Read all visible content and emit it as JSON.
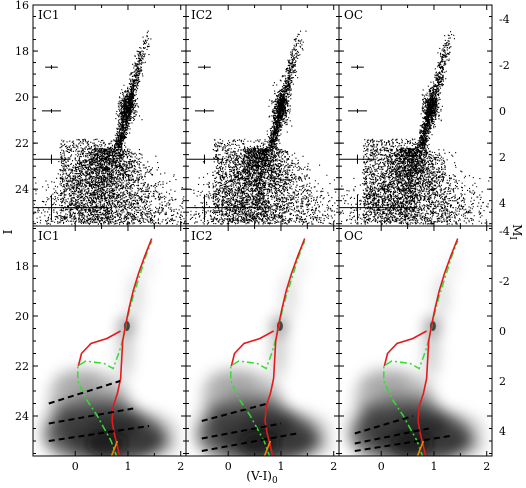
{
  "chart_data": {
    "type": "scatter",
    "description_type": "color-magnitude diagram grid",
    "x_axis": {
      "label": "(V-I)",
      "label_subscript": "0",
      "range": [
        -0.8,
        2.1
      ],
      "ticks": [
        0,
        1,
        2
      ],
      "tick_labels": [
        "0",
        "1",
        "2"
      ]
    },
    "left_axis": {
      "label": "I",
      "range_top": 16,
      "range_bottom": 25.6,
      "inverted": true,
      "top_ticks": [
        16,
        18,
        20,
        22,
        24
      ],
      "top_tick_labels": [
        "16",
        "18",
        "20",
        "22",
        "24"
      ],
      "bottom_ticks": [
        18,
        20,
        22,
        24
      ],
      "bottom_tick_labels": [
        "18",
        "20",
        "22",
        "24"
      ]
    },
    "right_axis": {
      "label": "M",
      "label_subscript": "I",
      "range_top": -4.6,
      "range_bottom": 5.0,
      "inverted": true,
      "ticks": [
        -4,
        -2,
        0,
        2,
        4
      ],
      "tick_labels": [
        "-4",
        "-2",
        "0",
        "2",
        "4"
      ]
    },
    "panels": [
      {
        "row": "top",
        "label": "IC1",
        "style": "points"
      },
      {
        "row": "top",
        "label": "IC2",
        "style": "points"
      },
      {
        "row": "top",
        "label": "OC",
        "style": "points"
      },
      {
        "row": "bottom",
        "label": "IC1",
        "style": "density"
      },
      {
        "row": "bottom",
        "label": "IC2",
        "style": "density"
      },
      {
        "row": "bottom",
        "label": "OC",
        "style": "density"
      }
    ],
    "error_bars": [
      {
        "I": 18.7,
        "dcolor": 0.02,
        "dmag": 0.01
      },
      {
        "I": 20.6,
        "dcolor": 0.03,
        "dmag": 0.02
      },
      {
        "I": 22.7,
        "dcolor": 0.06,
        "dmag": 0.05
      },
      {
        "I": 24.8,
        "dcolor": 0.18,
        "dmag": 0.14
      }
    ],
    "curves": {
      "red_isochrone": [
        [
          0.85,
          25.7
        ],
        [
          0.8,
          25.2
        ],
        [
          0.74,
          24.7
        ],
        [
          0.7,
          24.2
        ],
        [
          0.72,
          23.6
        ],
        [
          0.8,
          23.1
        ],
        [
          0.86,
          22.5
        ],
        [
          0.88,
          21.8
        ],
        [
          0.9,
          21.0
        ],
        [
          0.96,
          20.3
        ],
        [
          1.02,
          19.7
        ],
        [
          1.1,
          19.0
        ],
        [
          1.2,
          18.3
        ],
        [
          1.32,
          17.6
        ],
        [
          1.45,
          16.9
        ]
      ],
      "red_hook": [
        [
          0.86,
          20.6
        ],
        [
          0.6,
          20.9
        ],
        [
          0.3,
          21.1
        ],
        [
          0.12,
          21.5
        ],
        [
          0.06,
          22.0
        ]
      ],
      "green_isochrone": [
        [
          0.8,
          25.7
        ],
        [
          0.68,
          25.0
        ],
        [
          0.55,
          24.5
        ],
        [
          0.42,
          24.0
        ],
        [
          0.2,
          23.3
        ],
        [
          0.05,
          22.6
        ],
        [
          0.05,
          22.0
        ],
        [
          0.2,
          21.8
        ],
        [
          0.55,
          21.9
        ],
        [
          0.72,
          22.1
        ],
        [
          0.84,
          21.4
        ],
        [
          0.92,
          20.8
        ],
        [
          1.0,
          20.0
        ],
        [
          1.1,
          19.2
        ],
        [
          1.22,
          18.4
        ],
        [
          1.34,
          17.6
        ],
        [
          1.45,
          17.0
        ]
      ],
      "orange_line": [
        [
          0.65,
          25.8
        ],
        [
          0.8,
          25.0
        ]
      ]
    },
    "dashed_lines": {
      "IC1": [
        [
          [
            -0.5,
            23.5
          ],
          [
            0.85,
            22.6
          ]
        ],
        [
          [
            -0.5,
            24.3
          ],
          [
            1.1,
            23.7
          ]
        ],
        [
          [
            -0.5,
            25.0
          ],
          [
            1.4,
            24.4
          ]
        ]
      ],
      "IC2": [
        [
          [
            -0.5,
            24.2
          ],
          [
            0.75,
            23.5
          ]
        ],
        [
          [
            -0.5,
            24.9
          ],
          [
            1.0,
            24.3
          ]
        ],
        [
          [
            -0.5,
            25.4
          ],
          [
            1.3,
            24.7
          ]
        ]
      ],
      "OC": [
        [
          [
            -0.5,
            24.7
          ],
          [
            0.6,
            24.0
          ]
        ],
        [
          [
            -0.5,
            25.1
          ],
          [
            0.9,
            24.5
          ]
        ],
        [
          [
            -0.5,
            25.4
          ],
          [
            1.3,
            24.8
          ]
        ]
      ]
    },
    "colors": {
      "points": "#000000",
      "red": "#e31a1c",
      "green": "#33dd33",
      "orange": "#f08a00",
      "dashed": "#000000"
    }
  }
}
